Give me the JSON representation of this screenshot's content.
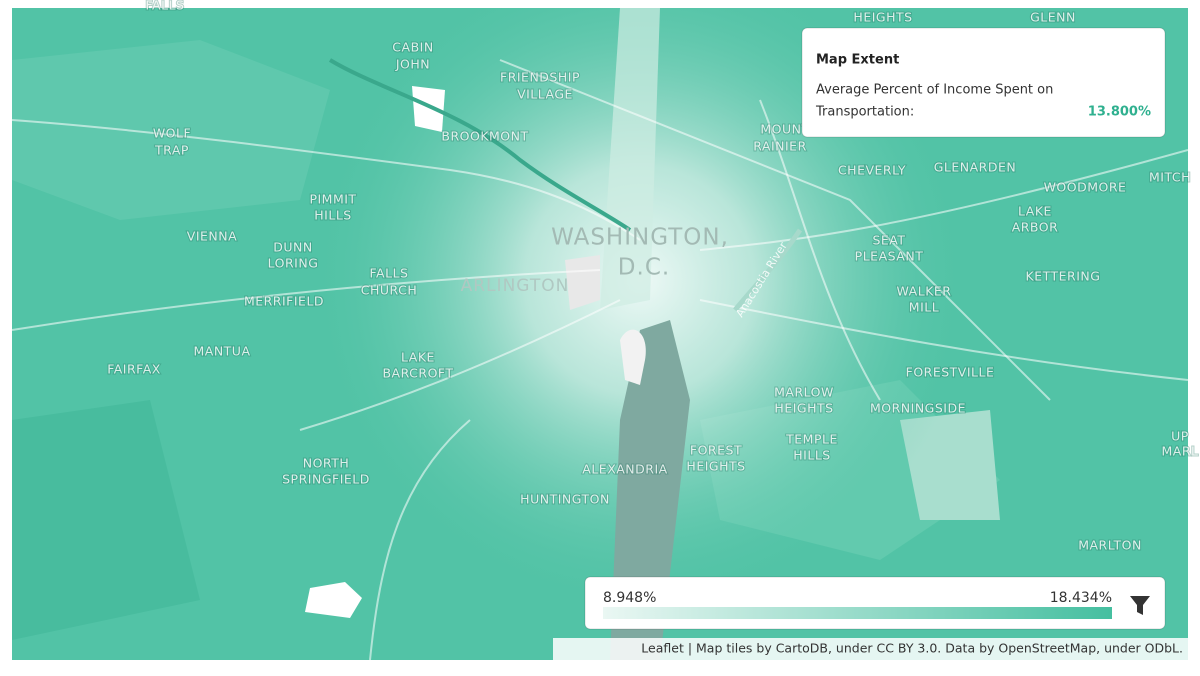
{
  "place_labels": [
    [
      "FALLS"
    ],
    [
      "CABIN",
      "JOHN"
    ],
    [
      "FRIENDSHIP",
      "VILLAGE"
    ],
    [
      "HEIGHTS"
    ],
    [
      "GLENN"
    ],
    [
      "WOLF",
      "TRAP"
    ],
    [
      "BROOKMONT"
    ],
    [
      "MOUNT",
      "RAINIER"
    ],
    [
      "CHEVERLY"
    ],
    [
      "GLENARDEN"
    ],
    [
      "WOODMORE"
    ],
    [
      "MITCH"
    ],
    [
      "PIMMIT",
      "HILLS"
    ],
    [
      "VIENNA"
    ],
    [
      "LAKE",
      "ARBOR"
    ],
    [
      "SEAT",
      "PLEASANT"
    ],
    [
      "DUNN",
      "LORING"
    ],
    [
      "FALLS",
      "CHURCH"
    ],
    [
      "KETTERING"
    ],
    [
      "MERRIFIELD"
    ],
    [
      "WALKER",
      "MILL"
    ],
    [
      "MANTUA"
    ],
    [
      "LAKE",
      "BARCROFT"
    ],
    [
      "FAIRFAX"
    ],
    [
      "FORESTVILLE"
    ],
    [
      "MARLOW",
      "HEIGHTS"
    ],
    [
      "MORNINGSIDE"
    ],
    [
      "FOREST",
      "HEIGHTS"
    ],
    [
      "TEMPLE",
      "HILLS"
    ],
    [
      "UP",
      "MARL"
    ],
    [
      "NORTH",
      "SPRINGFIELD"
    ],
    [
      "ALEXANDRIA"
    ],
    [
      "HUNTINGTON"
    ],
    [
      "MARLTON"
    ]
  ],
  "major_labels": {
    "city": [
      "WASHINGTON,",
      "D.C."
    ],
    "arlington": "ARLINGTON",
    "river": "Anacostia River"
  },
  "info_box": {
    "title": "Map Extent",
    "label": [
      "Average Percent of Income Spent on",
      "Transportation:"
    ],
    "value": "13.800%"
  },
  "legend": {
    "min": "8.948%",
    "max": "18.434%"
  },
  "attribution": "Leaflet | Map tiles by CartoDB, under CC BY 3.0. Data by OpenStreetMap, under ODbL."
}
